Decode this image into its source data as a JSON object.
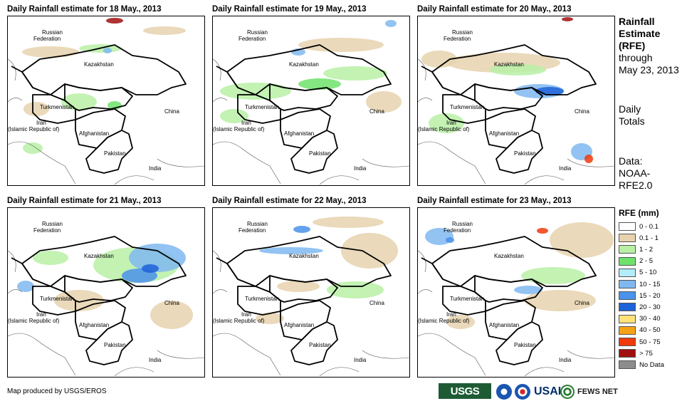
{
  "panels": [
    {
      "title": "Daily Rainfall estimate for 18 May., 2013",
      "day": 18
    },
    {
      "title": "Daily Rainfall estimate for 19 May., 2013",
      "day": 19
    },
    {
      "title": "Daily Rainfall estimate for 20 May., 2013",
      "day": 20
    },
    {
      "title": "Daily Rainfall estimate for 21 May., 2013",
      "day": 21
    },
    {
      "title": "Daily Rainfall estimate for 22 May., 2013",
      "day": 22
    },
    {
      "title": "Daily Rainfall estimate for 23 May., 2013",
      "day": 23
    }
  ],
  "places": {
    "russia_1": "Russian",
    "russia_2": "Federation",
    "kazakhstan": "Kazakhstan",
    "turkmenistan": "Turkmenistan",
    "iran_1": "Iran",
    "iran_2": "(Islamic Republic of)",
    "afghanistan": "Afghanistan",
    "pakistan": "Pakistan",
    "china": "China",
    "india": "India"
  },
  "side": {
    "title_1": "Rainfall",
    "title_2": "Estimate",
    "title_3": "(RFE)",
    "through": "through",
    "date": "May 23, 2013",
    "totals_1": "Daily",
    "totals_2": "Totals",
    "data_1": "Data:",
    "data_2": "NOAA-",
    "data_3": "RFE2.0"
  },
  "legend": {
    "title": "RFE (mm)",
    "items": [
      {
        "label": "0 - 0.1",
        "color": "#ffffff"
      },
      {
        "label": "0.1 - 1",
        "color": "#e6d2ae"
      },
      {
        "label": "1 - 2",
        "color": "#b9f0a6"
      },
      {
        "label": "2 - 5",
        "color": "#6ee26a"
      },
      {
        "label": "5 - 10",
        "color": "#b3ecfa"
      },
      {
        "label": "10 - 15",
        "color": "#7fb8f0"
      },
      {
        "label": "15 - 20",
        "color": "#4a92ea"
      },
      {
        "label": "20 - 30",
        "color": "#1f62d8"
      },
      {
        "label": "30 - 40",
        "color": "#ffe27a"
      },
      {
        "label": "40 - 50",
        "color": "#f5a316"
      },
      {
        "label": "50 - 75",
        "color": "#f03a0c"
      },
      {
        "label": "> 75",
        "color": "#a01010"
      },
      {
        "label": "No Data",
        "color": "#8c8c8c"
      }
    ]
  },
  "footer": {
    "credit": "Map produced by USGS/EROS",
    "usgs": "USGS",
    "usaid": "USAID",
    "fews": "FEWS NET"
  }
}
